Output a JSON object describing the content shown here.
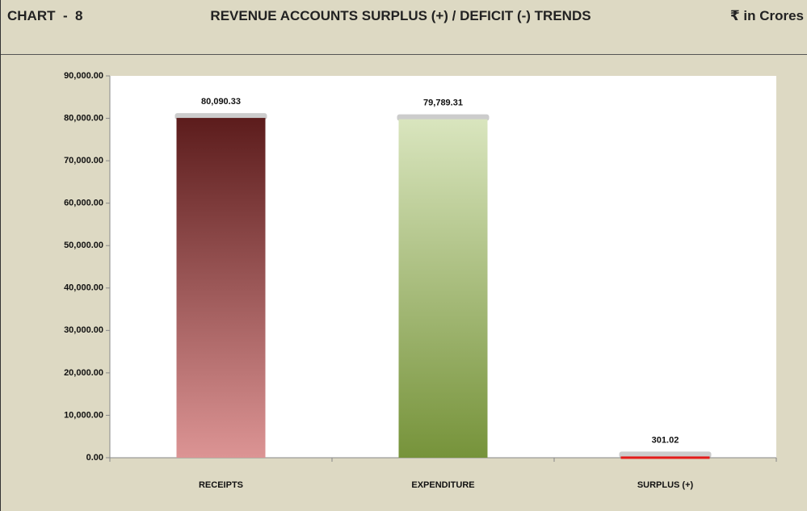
{
  "chart_data": {
    "type": "bar",
    "chart_label": "CHART  -  8",
    "title": "REVENUE ACCOUNTS SURPLUS (+) / DEFICIT (-) TRENDS",
    "unit_label": "₹ in Crores",
    "categories": [
      "RECEIPTS",
      "EXPENDITURE",
      "SURPLUS (+)"
    ],
    "values": [
      80090.33,
      79789.31,
      301.02
    ],
    "value_labels": [
      "80,090.33",
      "79,789.31",
      "301.02"
    ],
    "bar_gradients": [
      [
        "#5c1c1c",
        "#dc9494"
      ],
      [
        "#d9e5be",
        "#76933a"
      ],
      [
        "#e41a1a",
        "#e41a1a"
      ]
    ],
    "ylim": [
      0,
      90000
    ],
    "yticks": [
      {
        "value": 0,
        "label": "0.00"
      },
      {
        "value": 10000,
        "label": "10,000.00"
      },
      {
        "value": 20000,
        "label": "20,000.00"
      },
      {
        "value": 30000,
        "label": "30,000.00"
      },
      {
        "value": 40000,
        "label": "40,000.00"
      },
      {
        "value": 50000,
        "label": "50,000.00"
      },
      {
        "value": 60000,
        "label": "60,000.00"
      },
      {
        "value": 70000,
        "label": "70,000.00"
      },
      {
        "value": 80000,
        "label": "80,000.00"
      },
      {
        "value": 90000,
        "label": "90,000.00"
      }
    ],
    "grid": false
  }
}
